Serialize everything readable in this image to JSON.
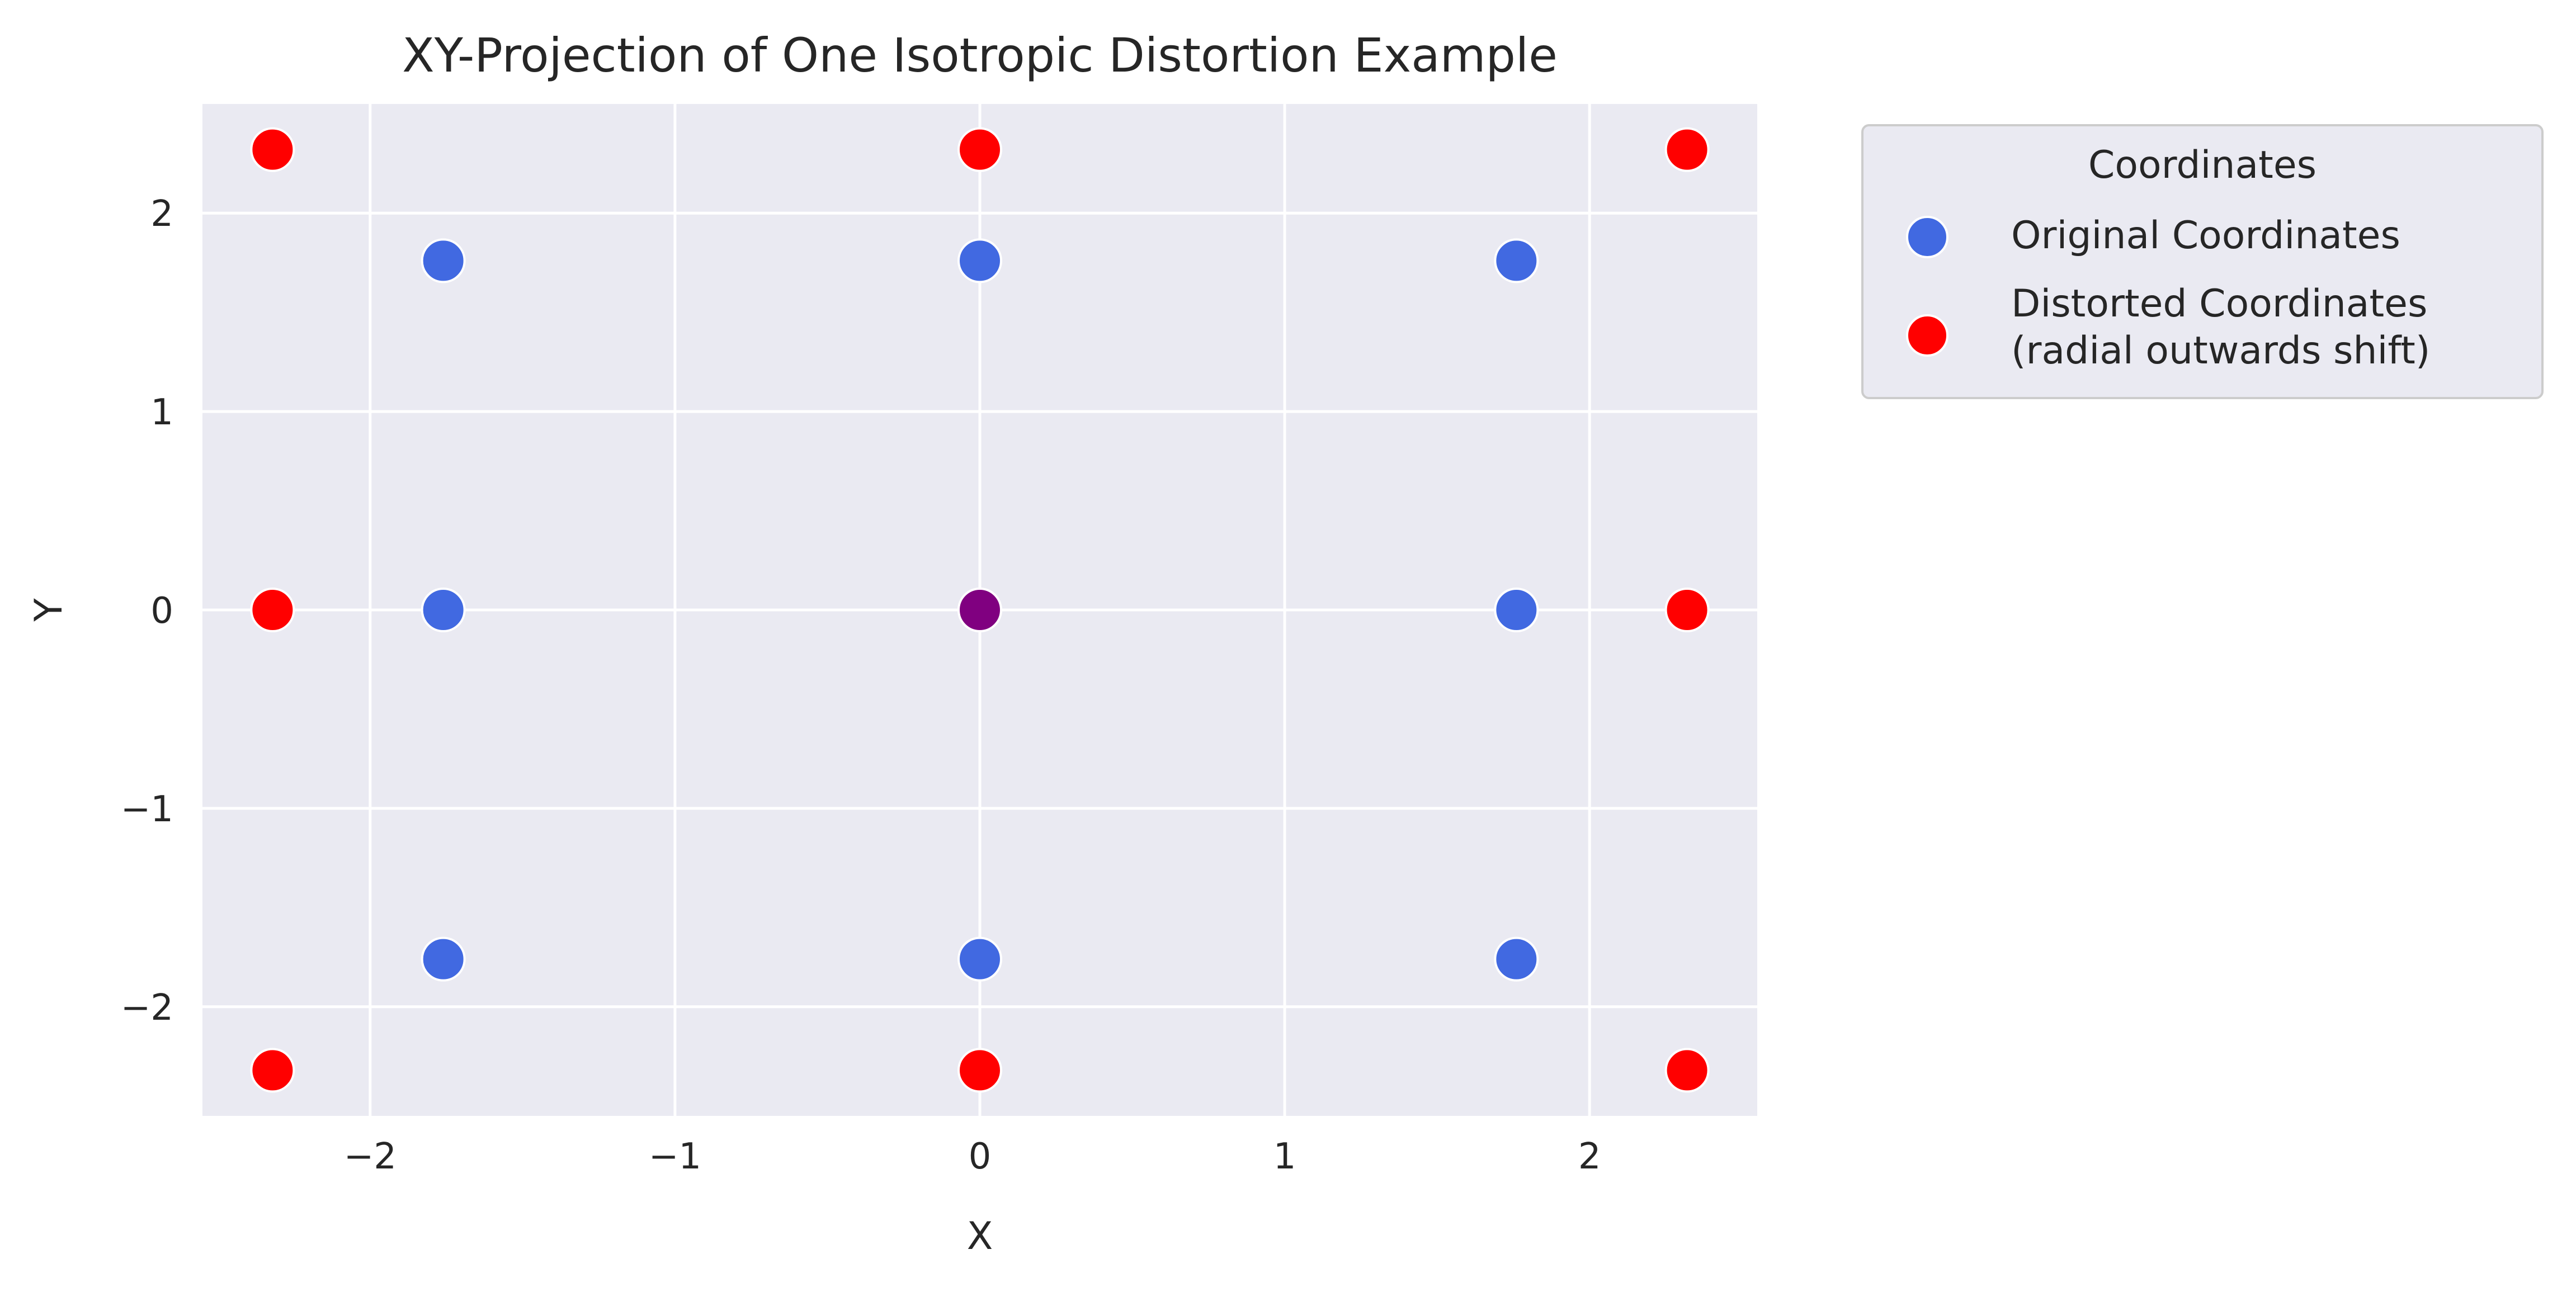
{
  "chart_data": {
    "type": "scatter",
    "title": "XY-Projection of One Isotropic Distortion Example",
    "xlabel": "X",
    "ylabel": "Y",
    "xlim": [
      -2.55,
      2.55
    ],
    "ylim": [
      -2.55,
      2.55
    ],
    "xticks": [
      -2,
      -1,
      0,
      1,
      2
    ],
    "yticks": [
      -2,
      -1,
      0,
      1,
      2
    ],
    "xtick_labels": [
      "−2",
      "−1",
      "0",
      "1",
      "2"
    ],
    "ytick_labels": [
      "−2",
      "−1",
      "0",
      "1",
      "2"
    ],
    "grid": true,
    "legend": {
      "title": "Coordinates",
      "placement": "outside-right-top",
      "entries": [
        {
          "label": "Original Coordinates",
          "color": "#4169E1"
        },
        {
          "label_lines": [
            "Distorted Coordinates",
            "(radial outwards shift)"
          ],
          "color": "#FF0000"
        }
      ]
    },
    "series": [
      {
        "name": "Original Coordinates",
        "color": "#4169E1",
        "points": [
          [
            -1.76,
            1.76
          ],
          [
            0,
            1.76
          ],
          [
            1.76,
            1.76
          ],
          [
            -1.76,
            0
          ],
          [
            0,
            0
          ],
          [
            1.76,
            0
          ],
          [
            -1.76,
            -1.76
          ],
          [
            0,
            -1.76
          ],
          [
            1.76,
            -1.76
          ]
        ]
      },
      {
        "name": "Distorted Coordinates (radial outwards shift)",
        "color": "#FF0000",
        "points": [
          [
            -2.32,
            2.32
          ],
          [
            0,
            2.32
          ],
          [
            2.32,
            2.32
          ],
          [
            -2.32,
            0
          ],
          [
            2.32,
            0
          ],
          [
            -2.32,
            -2.32
          ],
          [
            0,
            -2.32
          ],
          [
            2.32,
            -2.32
          ]
        ]
      },
      {
        "name": "",
        "color": "#800080",
        "points": [
          [
            0,
            0
          ]
        ]
      }
    ]
  }
}
